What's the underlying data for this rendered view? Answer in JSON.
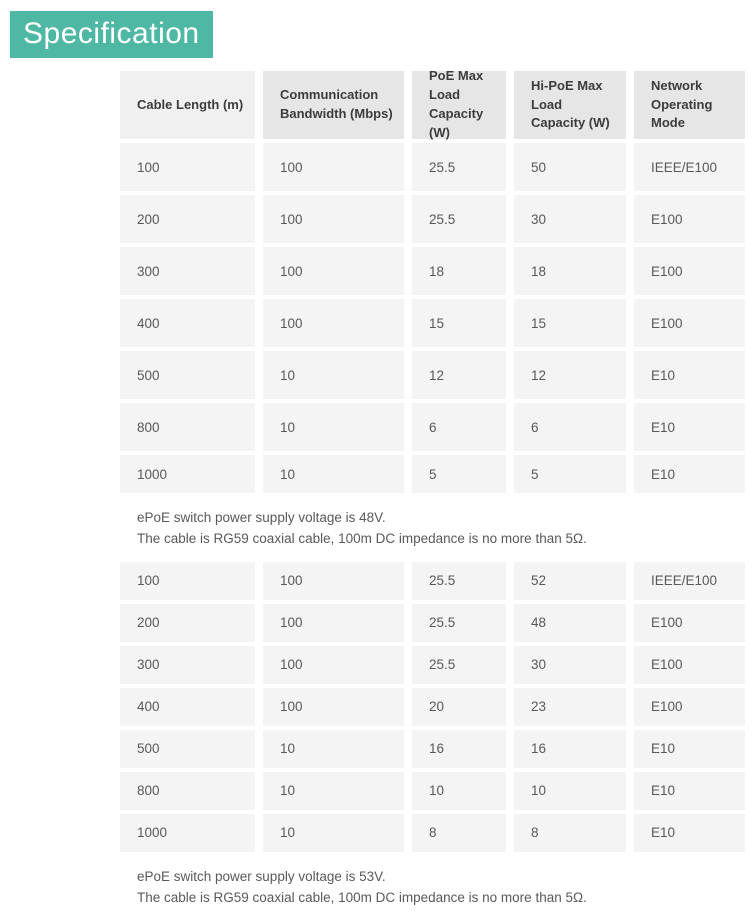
{
  "page": {
    "title": "Specification"
  },
  "colors": {
    "accent_teal": "#4fb8a4",
    "header_bg": "#e6e6e6",
    "header_first_bg": "#f0f0f0",
    "cell_bg": "#f4f4f4",
    "body_text": "#595959",
    "header_text": "#3c3c3c"
  },
  "table": {
    "columns": [
      "Cable Length (m)",
      "Communication Bandwidth (Mbps)",
      "PoE Max Load Capacity (W)",
      "Hi-PoE Max Load Capacity (W)",
      "Network Operating Mode"
    ],
    "sections": [
      {
        "rows": [
          [
            "100",
            "100",
            "25.5",
            "50",
            "IEEE/E100"
          ],
          [
            "200",
            "100",
            "25.5",
            "30",
            "E100"
          ],
          [
            "300",
            "100",
            "18",
            "18",
            "E100"
          ],
          [
            "400",
            "100",
            "15",
            "15",
            "E100"
          ],
          [
            "500",
            "10",
            "12",
            "12",
            "E10"
          ],
          [
            "800",
            "10",
            "6",
            "6",
            "E10"
          ],
          [
            "1000",
            "10",
            "5",
            "5",
            "E10"
          ]
        ],
        "note_lines": [
          "ePoE switch power supply voltage is 48V.",
          "The cable is RG59 coaxial cable, 100m DC impedance is no more than 5Ω."
        ]
      },
      {
        "rows": [
          [
            "100",
            "100",
            "25.5",
            "52",
            "IEEE/E100"
          ],
          [
            "200",
            "100",
            "25.5",
            "48",
            "E100"
          ],
          [
            "300",
            "100",
            "25.5",
            "30",
            "E100"
          ],
          [
            "400",
            "100",
            "20",
            "23",
            "E100"
          ],
          [
            "500",
            "10",
            "16",
            "16",
            "E10"
          ],
          [
            "800",
            "10",
            "10",
            "10",
            "E10"
          ],
          [
            "1000",
            "10",
            "8",
            "8",
            "E10"
          ]
        ],
        "note_lines": [
          "ePoE switch power supply voltage is 53V.",
          "The cable is RG59 coaxial cable, 100m DC impedance is no more than 5Ω."
        ]
      }
    ]
  }
}
